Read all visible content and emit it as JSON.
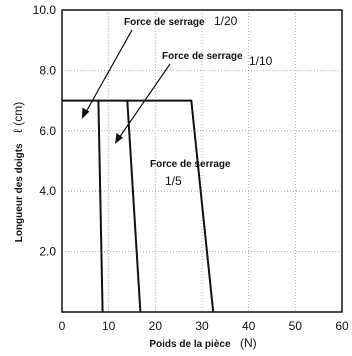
{
  "chart_data": {
    "type": "line",
    "xlabel": "Poids de la pièce",
    "xunit": "(N)",
    "ylabel": "Longueur des doigts",
    "yunit": "ℓ (cm)",
    "xlim": [
      0,
      60
    ],
    "ylim": [
      0,
      10
    ],
    "xticks": [
      0,
      10,
      20,
      30,
      40,
      50,
      60
    ],
    "xtick_labels": [
      "0",
      "10",
      "20",
      "30",
      "40",
      "50",
      "60"
    ],
    "yticks": [
      2,
      4,
      6,
      8,
      10
    ],
    "ytick_labels": [
      "2.0",
      "4.0",
      "6.0",
      "8.0",
      "10.0"
    ],
    "grid": true,
    "series": [
      {
        "name": "Force de serrage 1/20",
        "x": [
          8.7,
          7.8,
          0
        ],
        "y": [
          0,
          7.0,
          7.0
        ]
      },
      {
        "name": "Force de serrage 1/10",
        "x": [
          16.8,
          14.0,
          7.8
        ],
        "y": [
          0,
          7.0,
          7.0
        ]
      },
      {
        "name": "Force de serrage 1/5",
        "x": [
          32.4,
          27.7,
          14.0
        ],
        "y": [
          0,
          7.0,
          7.0
        ]
      }
    ],
    "annotations": [
      {
        "line1": "Force de serrage",
        "line2": "1/20",
        "target": [
          3.5,
          6.5
        ]
      },
      {
        "line1": "Force de serrage",
        "line2": "1/10",
        "target": [
          11.3,
          5.5
        ]
      },
      {
        "line1": "Force de serrage",
        "line2": "1/5"
      }
    ]
  }
}
